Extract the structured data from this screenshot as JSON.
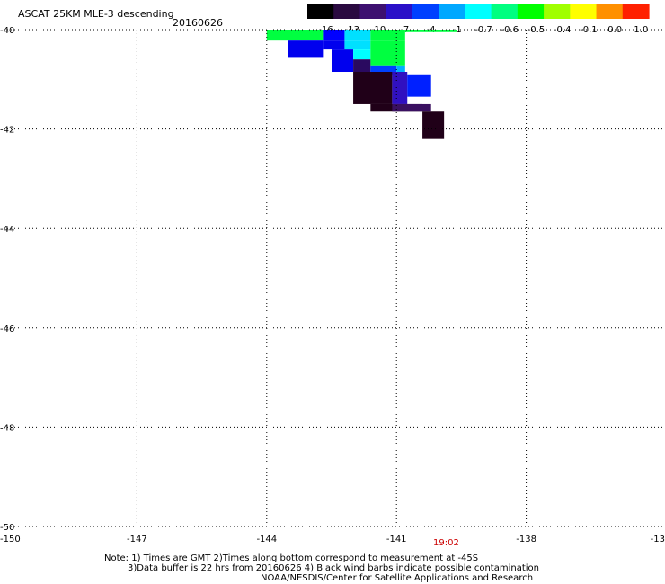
{
  "header": {
    "title": "ASCAT 25KM MLE-3 descending",
    "date": "20160626"
  },
  "colorbar": {
    "labels": [
      "-16",
      "-13",
      "-10",
      "-7",
      "-4",
      "-1",
      "-0.7",
      "-0.6",
      "-0.5",
      "-0.4",
      "-0.1",
      "0.0",
      "1.0"
    ],
    "colors": [
      "#000000",
      "#2a0a40",
      "#3d1070",
      "#2a10c8",
      "#0040ff",
      "#00a8ff",
      "#00ffff",
      "#00ff80",
      "#00ff00",
      "#a0ff00",
      "#ffff00",
      "#ff9000",
      "#ff2000"
    ]
  },
  "chart_data": {
    "type": "heatmap",
    "x_ticks": [
      "-150",
      "-147",
      "-144",
      "-141",
      "-138",
      "-13"
    ],
    "y_ticks": [
      "-40",
      "-42",
      "-44",
      "-46",
      "-48",
      "-50"
    ],
    "xlim": [
      -150,
      -135
    ],
    "ylim": [
      -50,
      -40
    ],
    "grid": true,
    "cells": [
      {
        "lon": -144.0,
        "lat": -40.0,
        "lon2": -142.7,
        "lat2": -40.22,
        "color": "#00ff40"
      },
      {
        "lon": -142.7,
        "lat": -40.0,
        "lon2": -142.2,
        "lat2": -40.22,
        "color": "#0000ff"
      },
      {
        "lon": -142.2,
        "lat": -40.0,
        "lon2": -141.6,
        "lat2": -40.22,
        "color": "#00e0ff"
      },
      {
        "lon": -141.6,
        "lat": -40.0,
        "lon2": -140.8,
        "lat2": -40.22,
        "color": "#00ff40"
      },
      {
        "lon": -140.8,
        "lat": -40.0,
        "lon2": -139.6,
        "lat2": -40.05,
        "color": "#00ff40"
      },
      {
        "lon": -143.5,
        "lat": -40.22,
        "lon2": -142.7,
        "lat2": -40.55,
        "color": "#0000ee"
      },
      {
        "lon": -142.7,
        "lat": -40.22,
        "lon2": -142.2,
        "lat2": -40.4,
        "color": "#0000ee"
      },
      {
        "lon": -142.2,
        "lat": -40.22,
        "lon2": -141.6,
        "lat2": -40.4,
        "color": "#00e0ff"
      },
      {
        "lon": -142.5,
        "lat": -40.4,
        "lon2": -142.0,
        "lat2": -40.85,
        "color": "#0000ee"
      },
      {
        "lon": -142.0,
        "lat": -40.4,
        "lon2": -141.6,
        "lat2": -40.6,
        "color": "#00ffff"
      },
      {
        "lon": -141.6,
        "lat": -40.22,
        "lon2": -140.8,
        "lat2": -40.72,
        "color": "#00ff40"
      },
      {
        "lon": -142.0,
        "lat": -40.6,
        "lon2": -141.6,
        "lat2": -40.85,
        "color": "#2a0a60"
      },
      {
        "lon": -141.6,
        "lat": -40.72,
        "lon2": -141.0,
        "lat2": -40.9,
        "color": "#0040ff"
      },
      {
        "lon": -141.0,
        "lat": -40.72,
        "lon2": -140.8,
        "lat2": -40.9,
        "color": "#00b0ff"
      },
      {
        "lon": -142.0,
        "lat": -40.85,
        "lon2": -141.1,
        "lat2": -41.5,
        "color": "#200018"
      },
      {
        "lon": -141.1,
        "lat": -40.85,
        "lon2": -140.75,
        "lat2": -41.5,
        "color": "#3010c0"
      },
      {
        "lon": -140.75,
        "lat": -40.9,
        "lon2": -140.2,
        "lat2": -41.35,
        "color": "#0020ff"
      },
      {
        "lon": -141.6,
        "lat": -41.5,
        "lon2": -140.4,
        "lat2": -41.65,
        "color": "#200018"
      },
      {
        "lon": -141.1,
        "lat": -41.5,
        "lon2": -140.2,
        "lat2": -41.65,
        "color": "#3a1060"
      },
      {
        "lon": -140.4,
        "lat": -41.65,
        "lon2": -139.9,
        "lat2": -42.2,
        "color": "#200018"
      }
    ]
  },
  "footer": {
    "time": "19:02",
    "note_line1": "Note: 1) Times are GMT 2)Times along bottom correspond to measurement at -45S",
    "note_line2": "3)Data buffer is 22 hrs from 20160626 4) Black wind barbs indicate possible contamination",
    "note_line3": "NOAA/NESDIS/Center for Satellite Applications and Research"
  }
}
